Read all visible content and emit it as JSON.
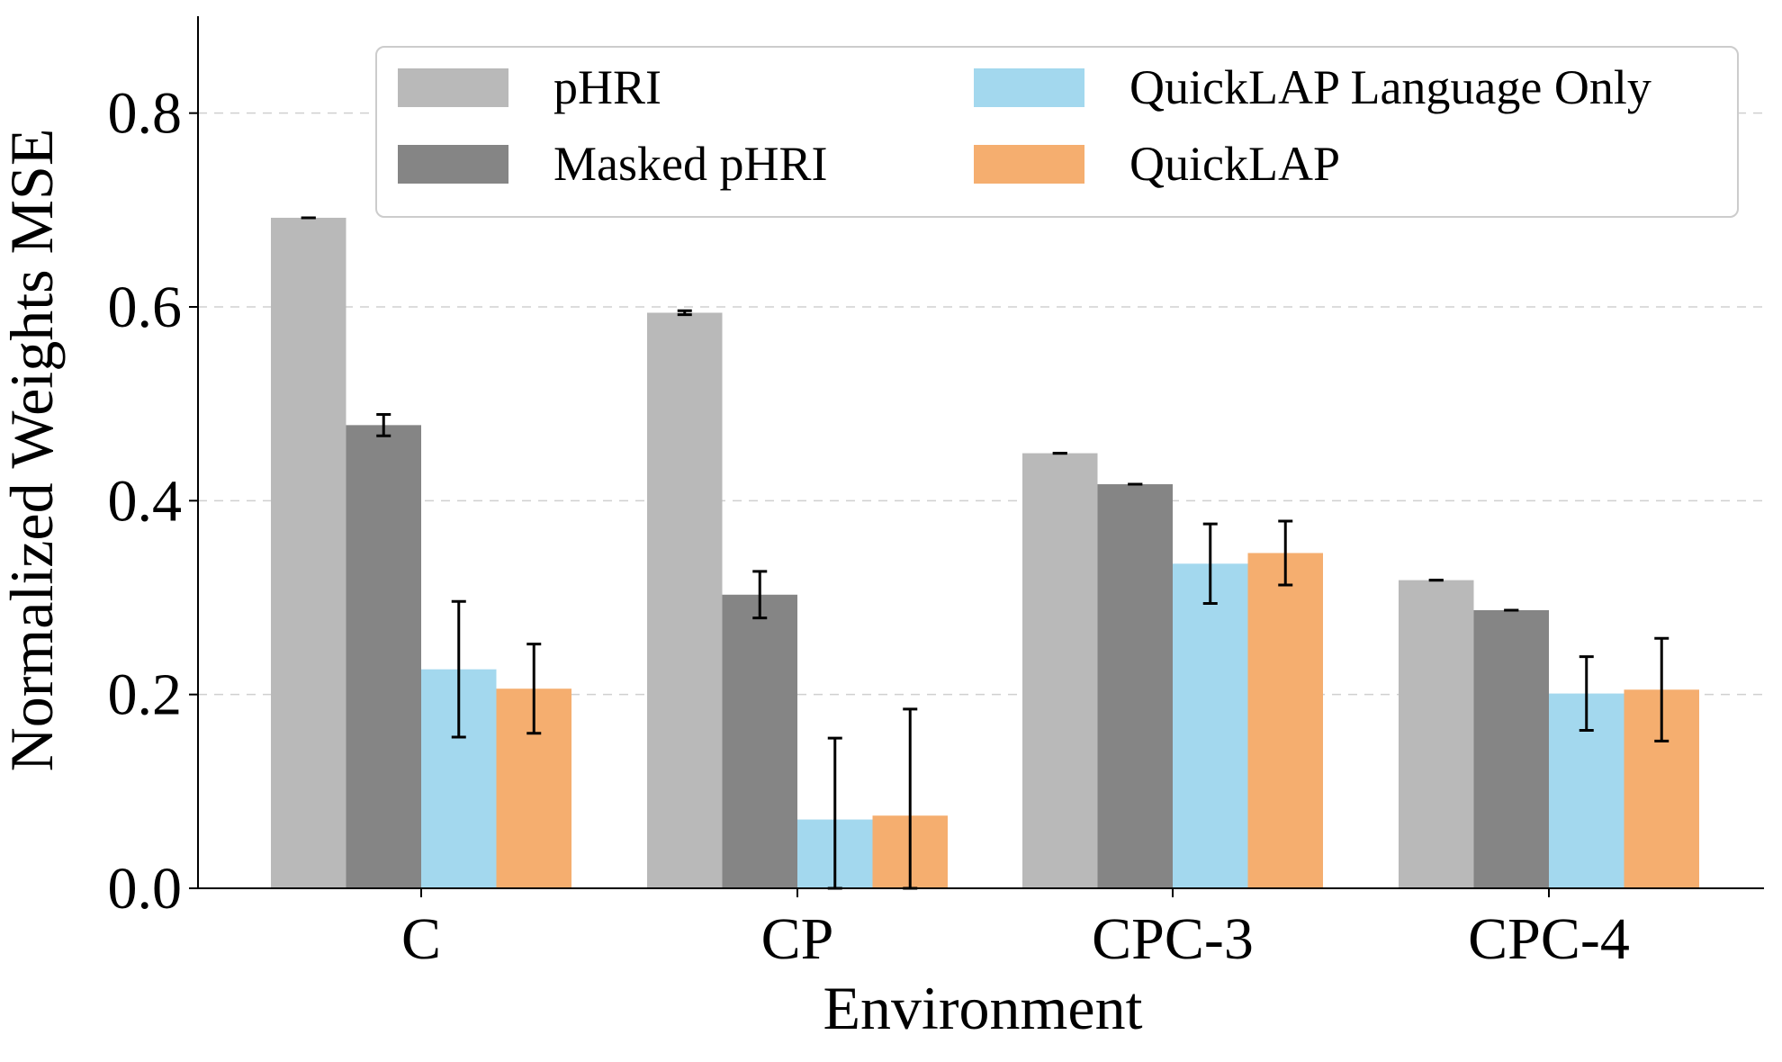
{
  "chart_data": {
    "type": "bar",
    "title": "",
    "xlabel": "Environment",
    "ylabel": "Normalized Weights MSE",
    "ylim": [
      0,
      0.9
    ],
    "yticks": [
      "0.0",
      "0.2",
      "0.4",
      "0.6",
      "0.8"
    ],
    "ytick_values": [
      0.0,
      0.2,
      0.4,
      0.6,
      0.8
    ],
    "grid": "horizontal dashed",
    "legend_position": "top-right",
    "categories": [
      "C",
      "CP",
      "CPC-3",
      "CPC-4"
    ],
    "series": [
      {
        "name": "pHRI",
        "color": "#b9b9b9",
        "values": [
          0.692,
          0.594,
          0.449,
          0.318
        ],
        "errors": [
          0.0,
          0.002,
          0.0,
          0.0
        ]
      },
      {
        "name": "Masked pHRI",
        "color": "#858585",
        "values": [
          0.478,
          0.303,
          0.417,
          0.287
        ],
        "errors": [
          0.011,
          0.024,
          0.0,
          0.0
        ]
      },
      {
        "name": "QuickLAP Language Only",
        "color": "#a3d8ee",
        "values": [
          0.226,
          0.071,
          0.335,
          0.201
        ],
        "errors": [
          0.07,
          0.084,
          0.041,
          0.038
        ]
      },
      {
        "name": "QuickLAP",
        "color": "#f5ae6f",
        "values": [
          0.206,
          0.075,
          0.346,
          0.205
        ],
        "errors": [
          0.046,
          0.11,
          0.033,
          0.053
        ]
      }
    ]
  }
}
